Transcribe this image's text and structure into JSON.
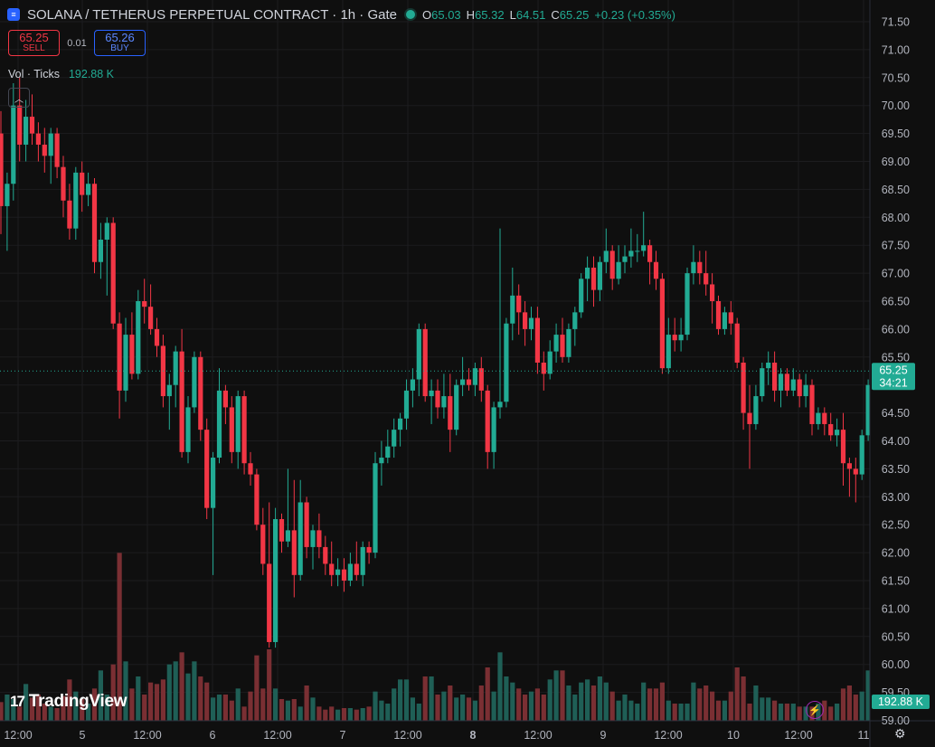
{
  "header": {
    "symbol": "SOLANA / TETHERUS PERPETUAL CONTRACT · 1h · Gate",
    "o_label": "O",
    "o": "65.03",
    "h_label": "H",
    "h": "65.32",
    "l_label": "L",
    "l": "64.51",
    "c_label": "C",
    "c": "65.25",
    "change": "+0.23 (+0.35%)"
  },
  "trade": {
    "sell_price": "65.25",
    "sell_label": "SELL",
    "spread": "0.01",
    "buy_price": "65.26",
    "buy_label": "BUY"
  },
  "volume": {
    "label": "Vol · Ticks",
    "value": "192.88 K"
  },
  "watermark": "TradingView",
  "price_label": {
    "price": "65.25",
    "countdown": "34:21"
  },
  "volume_label": "192.88 K",
  "colors": {
    "up": "#22ab94",
    "down": "#f23645",
    "background": "#0f0f0f"
  },
  "chart_data": {
    "type": "candlestick",
    "ylim": [
      58.8,
      71.6
    ],
    "yticks": [
      "71.50",
      "71.00",
      "70.50",
      "70.00",
      "69.50",
      "69.00",
      "68.50",
      "68.00",
      "67.50",
      "67.00",
      "66.50",
      "66.00",
      "65.50",
      "65.00",
      "64.50",
      "64.00",
      "63.50",
      "63.00",
      "62.50",
      "62.00",
      "61.50",
      "61.00",
      "60.50",
      "60.00",
      "59.50",
      "59.00"
    ],
    "xticks": [
      "12:00",
      "5",
      "12:00",
      "6",
      "12:00",
      "7",
      "12:00",
      "8",
      "12:00",
      "9",
      "12:00",
      "10",
      "12:00",
      "11"
    ],
    "last_price": 65.25,
    "candles": [
      [
        69.5,
        69.9,
        67.7,
        68.2
      ],
      [
        68.2,
        68.8,
        67.4,
        68.6
      ],
      [
        68.6,
        70.4,
        68.3,
        70.0
      ],
      [
        70.0,
        70.5,
        69.0,
        69.3
      ],
      [
        69.3,
        70.1,
        69.0,
        69.8
      ],
      [
        69.8,
        70.2,
        69.3,
        69.5
      ],
      [
        69.5,
        69.7,
        69.0,
        69.3
      ],
      [
        69.3,
        69.6,
        68.8,
        69.1
      ],
      [
        69.1,
        69.6,
        68.6,
        69.5
      ],
      [
        69.5,
        69.6,
        68.7,
        68.9
      ],
      [
        68.9,
        69.1,
        68.0,
        68.3
      ],
      [
        68.3,
        68.6,
        67.6,
        67.8
      ],
      [
        67.8,
        68.9,
        67.6,
        68.8
      ],
      [
        68.8,
        69.0,
        68.1,
        68.4
      ],
      [
        68.4,
        68.8,
        68.2,
        68.6
      ],
      [
        68.6,
        68.7,
        67.0,
        67.2
      ],
      [
        67.2,
        67.9,
        66.9,
        67.6
      ],
      [
        67.6,
        68.0,
        66.6,
        67.9
      ],
      [
        67.9,
        68.0,
        66.0,
        66.1
      ],
      [
        66.1,
        66.3,
        64.4,
        64.9
      ],
      [
        64.9,
        66.2,
        64.7,
        65.9
      ],
      [
        65.9,
        66.3,
        65.1,
        65.2
      ],
      [
        65.2,
        66.7,
        65.1,
        66.5
      ],
      [
        66.5,
        66.9,
        66.1,
        66.4
      ],
      [
        66.4,
        66.8,
        65.9,
        66.0
      ],
      [
        66.0,
        66.2,
        65.5,
        65.7
      ],
      [
        65.7,
        65.9,
        64.6,
        64.8
      ],
      [
        64.8,
        65.2,
        64.2,
        65.0
      ],
      [
        65.0,
        65.7,
        64.6,
        65.6
      ],
      [
        65.6,
        66.0,
        63.7,
        63.8
      ],
      [
        63.8,
        64.8,
        63.6,
        64.6
      ],
      [
        64.6,
        65.6,
        64.5,
        65.5
      ],
      [
        65.5,
        65.6,
        64.0,
        64.2
      ],
      [
        64.2,
        64.4,
        62.6,
        62.8
      ],
      [
        62.8,
        63.8,
        61.6,
        63.7
      ],
      [
        63.7,
        65.3,
        63.6,
        64.9
      ],
      [
        64.9,
        65.0,
        64.3,
        64.6
      ],
      [
        64.6,
        64.8,
        63.6,
        63.8
      ],
      [
        63.8,
        64.9,
        63.5,
        64.8
      ],
      [
        64.8,
        64.9,
        63.4,
        63.6
      ],
      [
        63.6,
        63.8,
        63.2,
        63.4
      ],
      [
        63.4,
        63.5,
        62.4,
        62.5
      ],
      [
        62.5,
        62.8,
        61.6,
        61.8
      ],
      [
        61.8,
        62.9,
        60.3,
        60.4
      ],
      [
        60.4,
        62.8,
        60.3,
        62.6
      ],
      [
        62.6,
        62.7,
        62.0,
        62.2
      ],
      [
        62.2,
        63.5,
        62.1,
        62.4
      ],
      [
        62.4,
        63.3,
        61.2,
        61.6
      ],
      [
        61.6,
        63.3,
        61.5,
        62.9
      ],
      [
        62.9,
        63.0,
        61.9,
        62.1
      ],
      [
        62.1,
        62.5,
        61.7,
        62.4
      ],
      [
        62.4,
        62.7,
        61.9,
        62.1
      ],
      [
        62.1,
        62.3,
        61.6,
        61.8
      ],
      [
        61.8,
        62.2,
        61.4,
        61.6
      ],
      [
        61.6,
        61.9,
        61.4,
        61.7
      ],
      [
        61.7,
        61.9,
        61.3,
        61.5
      ],
      [
        61.5,
        62.0,
        61.4,
        61.8
      ],
      [
        61.8,
        62.2,
        61.5,
        61.6
      ],
      [
        61.6,
        62.2,
        61.4,
        62.1
      ],
      [
        62.1,
        62.2,
        61.8,
        62.0
      ],
      [
        62.0,
        63.8,
        61.9,
        63.6
      ],
      [
        63.6,
        64.0,
        63.2,
        63.7
      ],
      [
        63.7,
        64.2,
        63.6,
        63.9
      ],
      [
        63.9,
        64.4,
        63.7,
        64.2
      ],
      [
        64.2,
        64.5,
        63.9,
        64.4
      ],
      [
        64.4,
        65.1,
        64.2,
        64.9
      ],
      [
        64.9,
        65.3,
        64.6,
        65.1
      ],
      [
        65.1,
        66.1,
        64.8,
        66.0
      ],
      [
        66.0,
        66.1,
        64.7,
        64.8
      ],
      [
        64.8,
        65.1,
        64.3,
        64.9
      ],
      [
        64.9,
        65.1,
        64.4,
        64.6
      ],
      [
        64.6,
        65.2,
        64.4,
        64.8
      ],
      [
        64.8,
        65.2,
        63.8,
        64.2
      ],
      [
        64.2,
        65.1,
        64.1,
        65.0
      ],
      [
        65.0,
        65.5,
        64.8,
        65.1
      ],
      [
        65.1,
        65.3,
        64.9,
        65.0
      ],
      [
        65.0,
        65.4,
        64.8,
        65.3
      ],
      [
        65.3,
        65.5,
        64.7,
        64.9
      ],
      [
        64.9,
        65.0,
        63.5,
        63.8
      ],
      [
        63.8,
        64.7,
        63.5,
        64.6
      ],
      [
        64.6,
        67.8,
        64.4,
        64.7
      ],
      [
        64.7,
        66.2,
        64.6,
        66.1
      ],
      [
        66.1,
        67.1,
        65.8,
        66.6
      ],
      [
        66.6,
        66.8,
        65.9,
        66.3
      ],
      [
        66.3,
        66.5,
        65.7,
        66.0
      ],
      [
        66.0,
        66.4,
        65.8,
        66.2
      ],
      [
        66.2,
        66.4,
        65.2,
        65.4
      ],
      [
        65.4,
        65.6,
        64.9,
        65.2
      ],
      [
        65.2,
        65.8,
        65.1,
        65.6
      ],
      [
        65.6,
        66.1,
        65.4,
        65.9
      ],
      [
        65.9,
        66.2,
        65.4,
        65.5
      ],
      [
        65.5,
        66.1,
        65.4,
        66.0
      ],
      [
        66.0,
        66.4,
        65.7,
        66.3
      ],
      [
        66.3,
        67.0,
        66.2,
        66.9
      ],
      [
        66.9,
        67.3,
        66.5,
        67.1
      ],
      [
        67.1,
        67.3,
        66.4,
        66.7
      ],
      [
        66.7,
        67.3,
        66.5,
        67.2
      ],
      [
        67.2,
        67.8,
        67.0,
        67.4
      ],
      [
        67.4,
        67.5,
        66.7,
        66.9
      ],
      [
        66.9,
        67.5,
        66.8,
        67.2
      ],
      [
        67.2,
        67.5,
        67.0,
        67.3
      ],
      [
        67.3,
        67.8,
        67.1,
        67.4
      ],
      [
        67.4,
        67.7,
        67.2,
        67.4
      ],
      [
        67.4,
        68.1,
        67.3,
        67.5
      ],
      [
        67.5,
        67.6,
        66.8,
        67.2
      ],
      [
        67.2,
        67.4,
        66.7,
        66.9
      ],
      [
        66.9,
        67.0,
        65.2,
        65.3
      ],
      [
        65.3,
        66.2,
        65.2,
        65.9
      ],
      [
        65.9,
        66.2,
        65.6,
        65.8
      ],
      [
        65.8,
        66.2,
        65.6,
        65.9
      ],
      [
        65.9,
        67.1,
        65.8,
        67.0
      ],
      [
        67.0,
        67.5,
        66.8,
        67.2
      ],
      [
        67.2,
        67.4,
        66.8,
        67.0
      ],
      [
        67.0,
        67.4,
        66.6,
        66.8
      ],
      [
        66.8,
        67.0,
        66.1,
        66.5
      ],
      [
        66.5,
        66.6,
        65.9,
        66.0
      ],
      [
        66.0,
        66.4,
        65.9,
        66.3
      ],
      [
        66.3,
        66.5,
        65.9,
        66.1
      ],
      [
        66.1,
        66.2,
        65.3,
        65.4
      ],
      [
        65.4,
        65.5,
        64.2,
        64.5
      ],
      [
        64.5,
        65.0,
        63.5,
        64.3
      ],
      [
        64.3,
        65.0,
        64.2,
        64.8
      ],
      [
        64.8,
        65.4,
        64.7,
        65.3
      ],
      [
        65.3,
        65.6,
        65.0,
        65.4
      ],
      [
        65.4,
        65.6,
        64.7,
        64.9
      ],
      [
        64.9,
        65.3,
        64.6,
        65.2
      ],
      [
        65.2,
        65.3,
        64.8,
        64.9
      ],
      [
        64.9,
        65.3,
        64.8,
        65.1
      ],
      [
        65.1,
        65.2,
        64.6,
        64.8
      ],
      [
        64.8,
        65.2,
        64.6,
        65.0
      ],
      [
        65.0,
        65.1,
        64.1,
        64.3
      ],
      [
        64.3,
        64.6,
        64.2,
        64.5
      ],
      [
        64.5,
        64.6,
        64.1,
        64.3
      ],
      [
        64.3,
        64.5,
        64.0,
        64.1
      ],
      [
        64.1,
        64.4,
        63.9,
        64.2
      ],
      [
        64.2,
        64.5,
        63.2,
        63.6
      ],
      [
        63.6,
        63.7,
        63.0,
        63.5
      ],
      [
        63.5,
        63.7,
        62.9,
        63.4
      ],
      [
        63.4,
        64.2,
        63.3,
        64.1
      ],
      [
        64.1,
        65.1,
        64.0,
        65.0
      ],
      [
        65.0,
        65.5,
        64.6,
        65.03
      ],
      [
        65.03,
        65.32,
        64.51,
        65.25
      ]
    ],
    "volume": [
      13,
      18,
      15,
      10,
      25,
      16,
      18,
      12,
      10,
      9,
      17,
      28,
      20,
      15,
      12,
      22,
      34,
      18,
      38,
      112,
      40,
      22,
      30,
      18,
      26,
      25,
      28,
      38,
      40,
      46,
      32,
      40,
      30,
      26,
      16,
      18,
      18,
      14,
      22,
      10,
      20,
      44,
      22,
      48,
      22,
      15,
      14,
      15,
      10,
      24,
      16,
      10,
      8,
      10,
      8,
      9,
      9,
      8,
      9,
      10,
      20,
      14,
      12,
      22,
      28,
      28,
      16,
      12,
      30,
      30,
      18,
      20,
      24,
      16,
      18,
      16,
      14,
      24,
      36,
      20,
      46,
      30,
      26,
      22,
      18,
      20,
      22,
      18,
      28,
      34,
      34,
      24,
      18,
      26,
      28,
      24,
      30,
      26,
      20,
      14,
      18,
      14,
      12,
      26,
      22,
      22,
      26,
      14,
      12,
      12,
      12,
      26,
      22,
      24,
      20,
      14,
      14,
      20,
      36,
      30,
      12,
      24,
      16,
      16,
      14,
      12,
      12,
      12,
      10,
      10,
      10,
      12,
      14,
      10,
      12,
      22,
      24,
      18,
      20,
      34,
      30,
      14
    ]
  }
}
